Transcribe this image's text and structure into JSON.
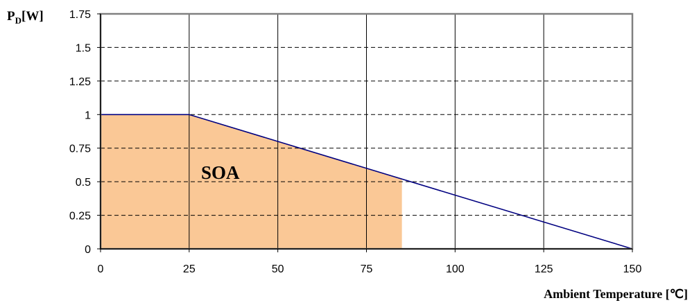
{
  "chart_data": {
    "type": "line",
    "ylabel": {
      "main": "P",
      "sub": "D",
      "unit": "[W]"
    },
    "xlabel": "Ambient Temperature [℃]",
    "annotation": "SOA",
    "xlim": [
      0,
      150
    ],
    "ylim": [
      0,
      1.75
    ],
    "x_ticks": [
      0,
      25,
      50,
      75,
      100,
      125,
      150
    ],
    "y_ticks": [
      0,
      0.25,
      0.5,
      0.75,
      1,
      1.25,
      1.5,
      1.75
    ],
    "x_tick_labels": [
      "0",
      "25",
      "50",
      "75",
      "100",
      "125",
      "150"
    ],
    "y_tick_labels": [
      "0",
      "0.25",
      "0.5",
      "0.75",
      "1",
      "1.25",
      "1.5",
      "1.75"
    ],
    "grid": {
      "vertical": "solid",
      "horizontal": "dashed"
    },
    "series": [
      {
        "x": [
          0,
          25,
          150
        ],
        "y": [
          1,
          1,
          0
        ],
        "color": "#000080"
      }
    ],
    "soa_region": {
      "x": [
        0,
        25,
        85,
        85,
        0
      ],
      "y": [
        1,
        1,
        0.52,
        0,
        0
      ],
      "color": "#FAC896"
    }
  }
}
